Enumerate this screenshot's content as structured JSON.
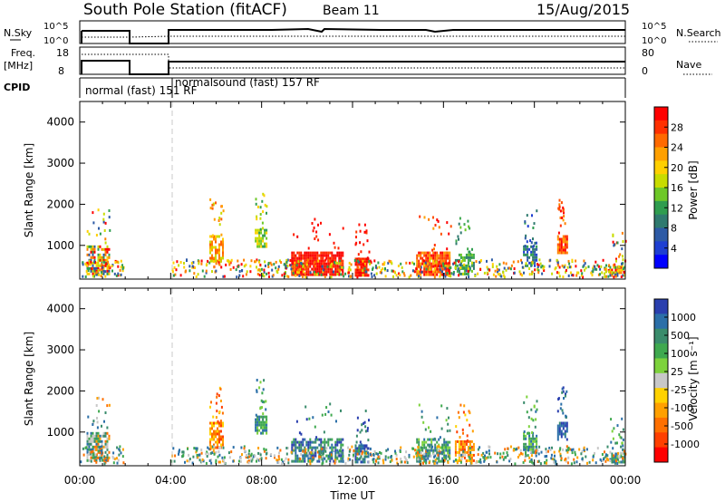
{
  "header": {
    "title": "South Pole Station (fitACF)",
    "beam": "Beam 11",
    "date": "15/Aug/2015"
  },
  "sky_panel": {
    "left_label": "N.Sky",
    "right_label": "N.Search",
    "left_ticks": [
      "10^5",
      "10^0"
    ],
    "right_ticks": [
      "10^5",
      "10^0"
    ]
  },
  "freq_panel": {
    "left_label_1": "Freq.",
    "left_label_2": "[MHz]",
    "right_label": "Nave",
    "left_ticks": [
      "18",
      "8"
    ],
    "right_ticks": [
      "80",
      "0"
    ]
  },
  "cpid": {
    "label": "CPID",
    "segments": [
      {
        "text": "normal (fast) 151 RF",
        "start_hour": 0.0
      },
      {
        "text": "normalsound (fast) 157 RF",
        "start_hour": 4.0
      }
    ]
  },
  "power_panel": {
    "ylabel": "Slant Range [km]",
    "colorbar_label": "Power [dB]",
    "colorbar_ticks": [
      "28",
      "24",
      "20",
      "16",
      "12",
      "8",
      "4"
    ],
    "colorbar_colors": [
      "#ff0000",
      "#ff3000",
      "#ff6a00",
      "#ffa000",
      "#ffd000",
      "#c8dc00",
      "#6ec828",
      "#2f9d4f",
      "#2f7a6f",
      "#2d5aa5",
      "#1e3fd2",
      "#0000ff"
    ]
  },
  "velocity_panel": {
    "ylabel": "Slant Range [km]",
    "colorbar_label": "Velocity [m s⁻¹]",
    "colorbar_ticks": [
      "1000",
      "500",
      "100",
      "25",
      "-25",
      "-100",
      "-500",
      "-1000"
    ],
    "colorbar_colors": [
      "#2a3fae",
      "#2b6fa8",
      "#3a8c6c",
      "#3fa94f",
      "#7dd23c",
      "#c8c8c8",
      "#ffd200",
      "#ffa000",
      "#ff7000",
      "#ff4000",
      "#ff0000"
    ]
  },
  "chart_data": {
    "type": "heatmap",
    "xlabel": "Time UT",
    "x_tick_labels": [
      "00:00",
      "04:00",
      "08:00",
      "12:00",
      "16:00",
      "20:00",
      "00:00"
    ],
    "xlim_hours": [
      0,
      24
    ],
    "y_tick_labels": [
      "1000",
      "2000",
      "3000",
      "4000"
    ],
    "ylim_km": [
      180,
      4500
    ],
    "grid": false,
    "echo_regions": [
      {
        "t0": 0.3,
        "t1": 1.3,
        "r0": 300,
        "r1": 1000,
        "power": "mixed",
        "velocity": "mixed"
      },
      {
        "t0": 5.7,
        "t1": 6.3,
        "r0": 600,
        "r1": 1250,
        "power": "orange-yellow",
        "velocity": "orange"
      },
      {
        "t0": 7.7,
        "t1": 8.2,
        "r0": 1000,
        "r1": 1400,
        "power": "green-yellow",
        "velocity": "green"
      },
      {
        "t0": 9.3,
        "t1": 11.6,
        "r0": 300,
        "r1": 850,
        "power": "red",
        "velocity": "green-blue"
      },
      {
        "t0": 12.1,
        "t1": 12.7,
        "r0": 300,
        "r1": 700,
        "power": "red",
        "velocity": "blue"
      },
      {
        "t0": 14.8,
        "t1": 16.3,
        "r0": 300,
        "r1": 850,
        "power": "red-orange",
        "velocity": "green"
      },
      {
        "t0": 16.5,
        "t1": 17.3,
        "r0": 300,
        "r1": 800,
        "power": "green",
        "velocity": "orange"
      },
      {
        "t0": 19.5,
        "t1": 20.1,
        "r0": 500,
        "r1": 1000,
        "power": "green-blue",
        "velocity": "green"
      },
      {
        "t0": 21.0,
        "t1": 21.4,
        "r0": 800,
        "r1": 1250,
        "power": "red-orange",
        "velocity": "blue"
      },
      {
        "t0": 23.3,
        "t1": 24.0,
        "r0": 300,
        "r1": 500,
        "power": "mixed",
        "velocity": "green"
      }
    ],
    "data_gap_hours": [
      1.9,
      4.0
    ]
  }
}
